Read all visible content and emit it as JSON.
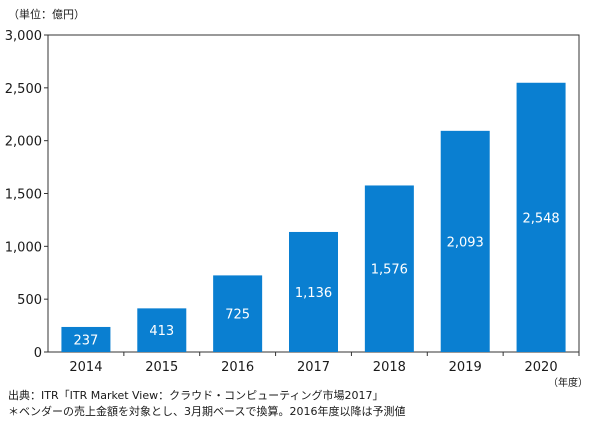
{
  "chart_data": {
    "type": "bar",
    "categories": [
      "2014",
      "2015",
      "2016",
      "2017",
      "2018",
      "2019",
      "2020"
    ],
    "values": [
      237,
      413,
      725,
      1136,
      1576,
      2093,
      2548
    ],
    "value_labels": [
      "237",
      "413",
      "725",
      "1,136",
      "1,576",
      "2,093",
      "2,548"
    ],
    "ylim": [
      0,
      3000
    ],
    "yticks": [
      0,
      500,
      1000,
      1500,
      2000,
      2500,
      3000
    ],
    "ytick_labels": [
      "0",
      "500",
      "1,000",
      "1,500",
      "2,000",
      "2,500",
      "3,000"
    ],
    "ylabel": "（単位：億円）",
    "xlabel": "（年度）",
    "grid": false,
    "bar_color": "#0a7fd1",
    "label_color": "#ffffff"
  },
  "notes": {
    "source": "出典：ITR「ITR Market View：クラウド・コンピューティング市場2017」",
    "footnote": "＊ベンダーの売上金額を対象とし、3月期ベースで換算。2016年度以降は予測値"
  }
}
